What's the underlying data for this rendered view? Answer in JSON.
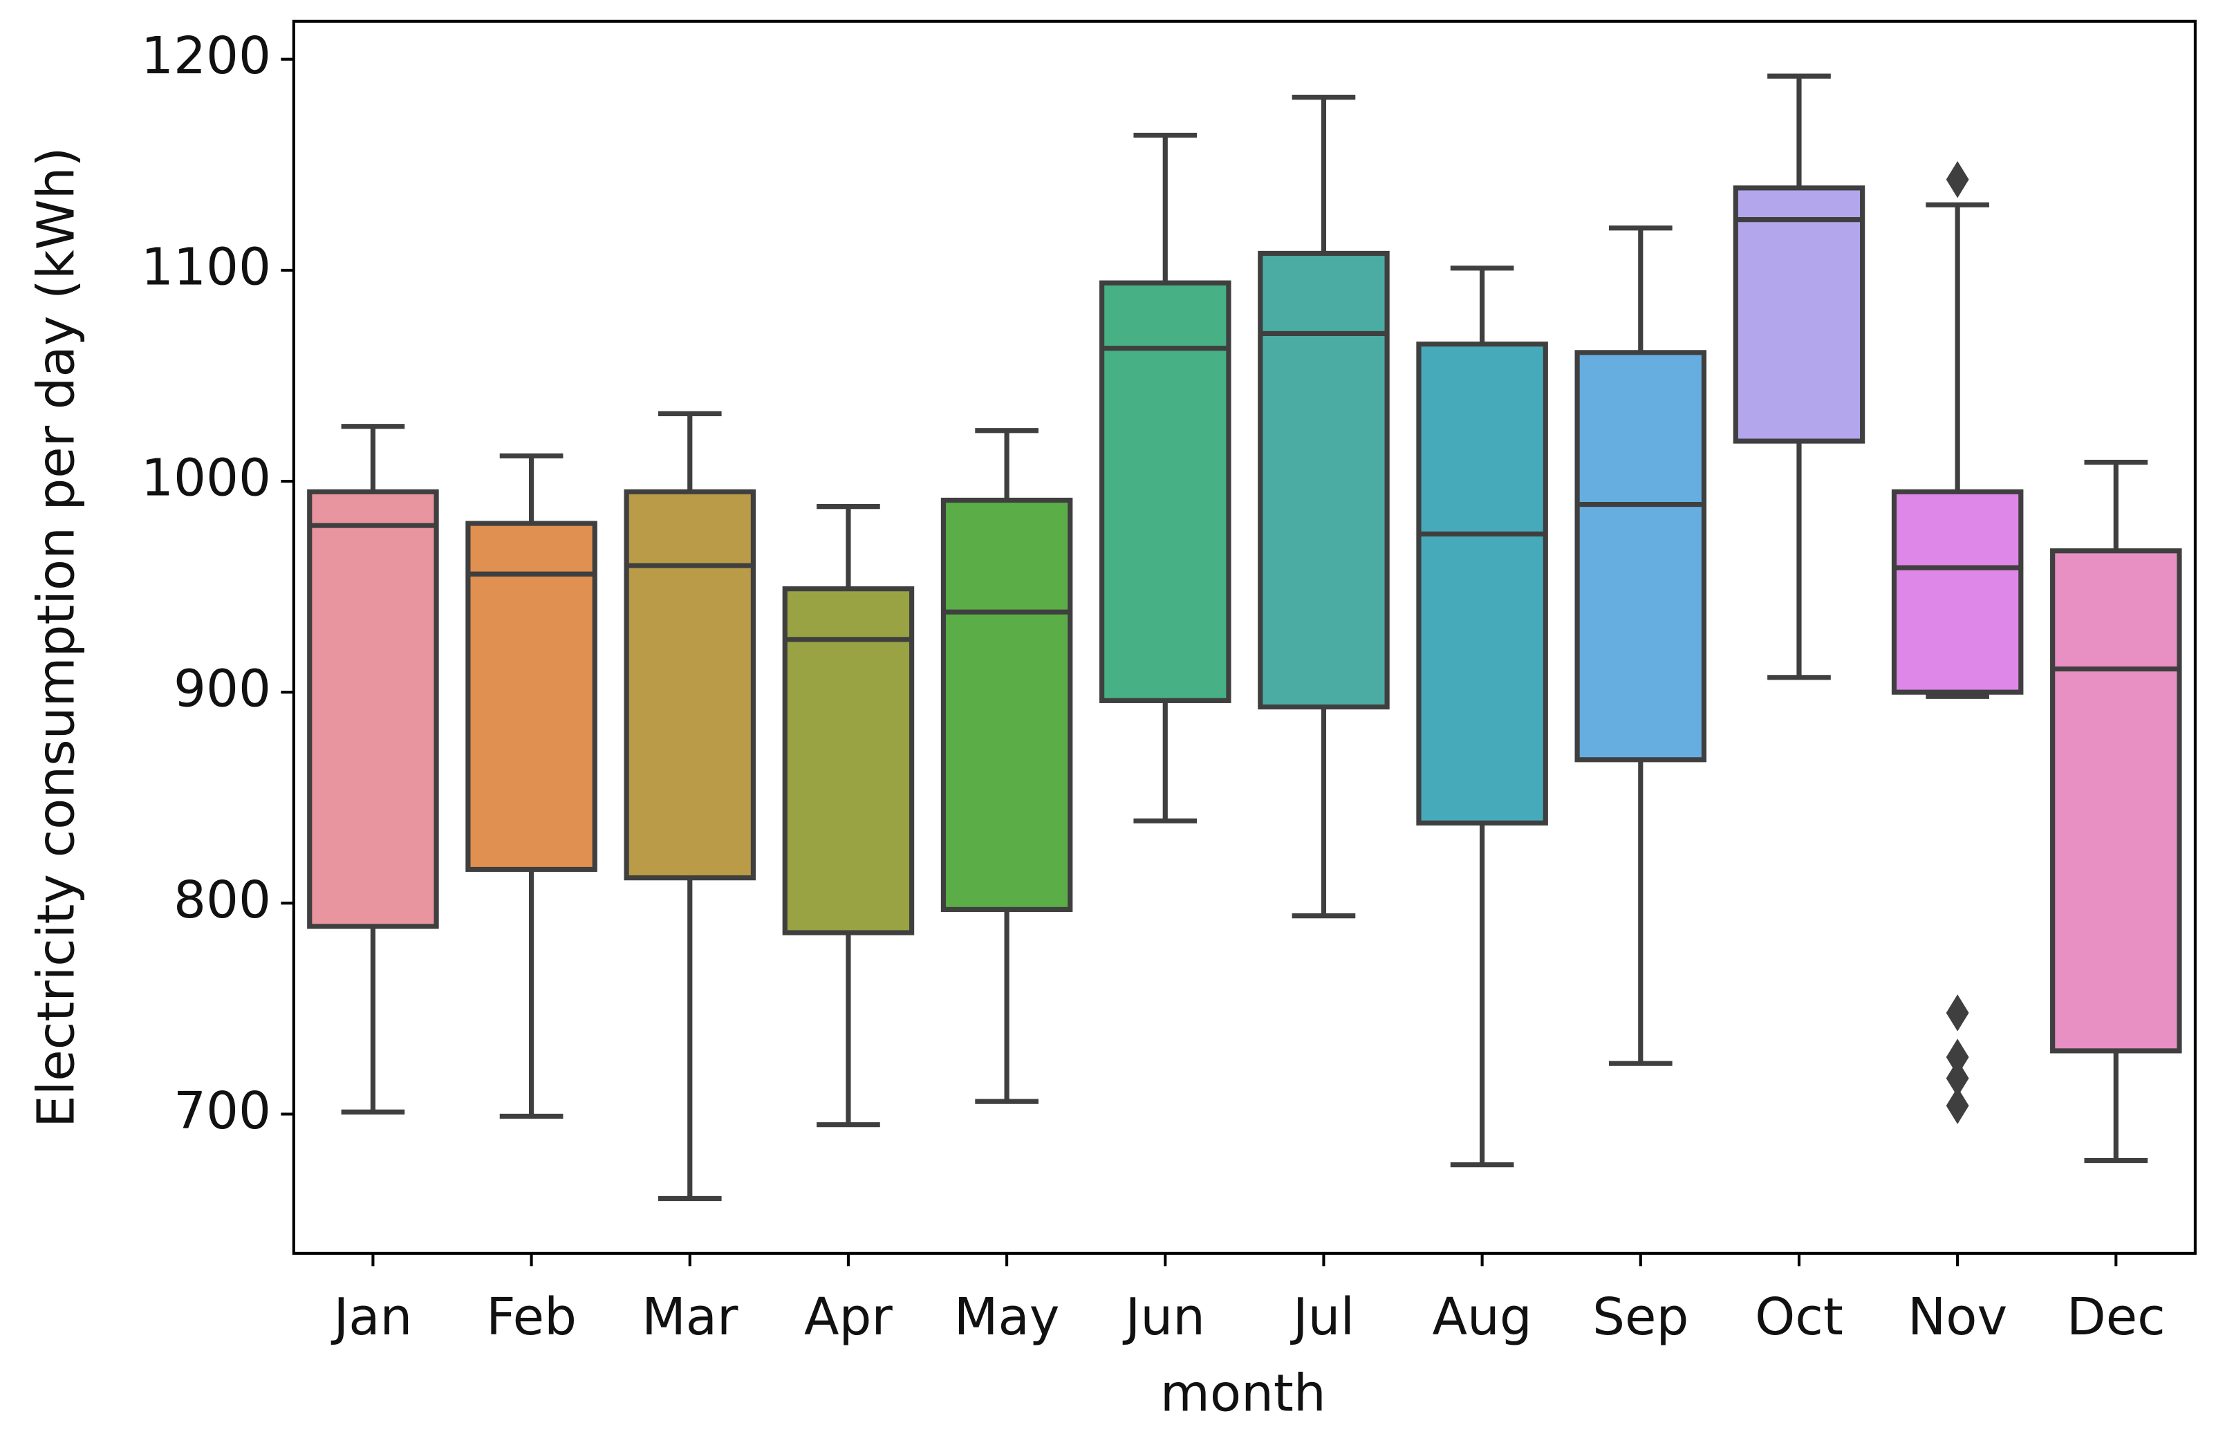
{
  "chart_data": {
    "type": "box",
    "xlabel": "month",
    "ylabel": "Electricity consumption  per day (kWh)",
    "categories": [
      "Jan",
      "Feb",
      "Mar",
      "Apr",
      "May",
      "Jun",
      "Jul",
      "Aug",
      "Sep",
      "Oct",
      "Nov",
      "Dec"
    ],
    "boxes": [
      {
        "whislo": 701,
        "q1": 789,
        "med": 979,
        "q3": 995,
        "whishi": 1026,
        "fliers": [],
        "color": "#e8959f"
      },
      {
        "whislo": 699,
        "q1": 816,
        "med": 956,
        "q3": 980,
        "whishi": 1012,
        "fliers": [],
        "color": "#e09050"
      },
      {
        "whislo": 660,
        "q1": 812,
        "med": 960,
        "q3": 995,
        "whishi": 1032,
        "fliers": [],
        "color": "#b99b48"
      },
      {
        "whislo": 695,
        "q1": 786,
        "med": 925,
        "q3": 949,
        "whishi": 988,
        "fliers": [],
        "color": "#99a344"
      },
      {
        "whislo": 706,
        "q1": 797,
        "med": 938,
        "q3": 991,
        "whishi": 1024,
        "fliers": [],
        "color": "#5aad47"
      },
      {
        "whislo": 839,
        "q1": 896,
        "med": 1063,
        "q3": 1094,
        "whishi": 1164,
        "fliers": [],
        "color": "#47b084"
      },
      {
        "whislo": 794,
        "q1": 893,
        "med": 1070,
        "q3": 1108,
        "whishi": 1182,
        "fliers": [],
        "color": "#4aaca3"
      },
      {
        "whislo": 676,
        "q1": 838,
        "med": 975,
        "q3": 1065,
        "whishi": 1101,
        "fliers": [],
        "color": "#47aabb"
      },
      {
        "whislo": 724,
        "q1": 868,
        "med": 989,
        "q3": 1061,
        "whishi": 1120,
        "fliers": [],
        "color": "#66aee0"
      },
      {
        "whislo": 907,
        "q1": 1019,
        "med": 1124,
        "q3": 1139,
        "whishi": 1192,
        "fliers": [],
        "color": "#b4a6ec"
      },
      {
        "whislo": 898,
        "q1": 900,
        "med": 959,
        "q3": 995,
        "whishi": 1131,
        "fliers": [
          1143,
          748,
          727,
          717,
          704
        ],
        "color": "#df87e8"
      },
      {
        "whislo": 678,
        "q1": 730,
        "med": 911,
        "q3": 967,
        "whishi": 1009,
        "fliers": [],
        "color": "#e88fc4"
      }
    ],
    "line_color": "#3f3f3f",
    "ylim": [
      634,
      1218
    ],
    "yticks": [
      700,
      800,
      900,
      1000,
      1100,
      1200
    ]
  }
}
